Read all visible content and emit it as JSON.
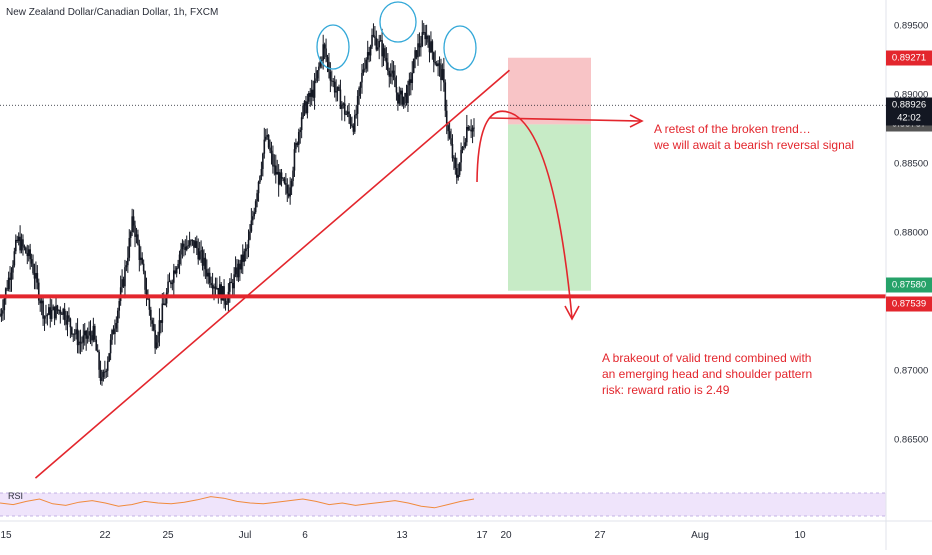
{
  "title": "New Zealand Dollar/Canadian Dollar, 1h, FXCM",
  "colors": {
    "candles": "#131722",
    "annotation": "#e3262d",
    "target_zone": "#c7ebc6",
    "stop_zone": "#f8c4c6",
    "rsi_line": "#f08a3c",
    "rsi_band": "#efe4fb",
    "head_shoulder_circles": "#33a8d8"
  },
  "annotations": {
    "retest_line1": "A retest of the broken trend…",
    "retest_line2": "we will await a bearish reversal signal",
    "breakout_line1": "A brakeout of valid trend combined with",
    "breakout_line2": "an emerging head and shoulder pattern",
    "breakout_line3": "risk: reward ratio is 2.49"
  },
  "rsi_label": "RSI",
  "time_badge": "42:02",
  "chart_data": {
    "type": "candlestick",
    "title": "New Zealand Dollar/Canadian Dollar, 1h, FXCM",
    "x_ticks": [
      "15",
      "22",
      "25",
      "Jul",
      "6",
      "13",
      "17",
      "20",
      "27",
      "Aug",
      "10"
    ],
    "y_ticks": [
      "0.89500",
      "0.89000",
      "0.88500",
      "0.88000",
      "0.87500",
      "0.87000",
      "0.86500"
    ],
    "ylim": [
      0.8617,
      0.8969
    ],
    "price_levels": [
      {
        "label": "0.89271",
        "value": 0.89271,
        "role": "stop-loss",
        "color": "#e3262d"
      },
      {
        "label": "0.88926",
        "value": 0.88926,
        "role": "current-price",
        "color": "#131722"
      },
      {
        "label": "0.88787",
        "value": 0.88787,
        "role": "entry",
        "color": "#555555"
      },
      {
        "label": "0.87580",
        "value": 0.8758,
        "role": "take-profit",
        "color": "#26a269"
      },
      {
        "label": "0.87539",
        "value": 0.87539,
        "role": "support",
        "color": "#e3262d"
      }
    ],
    "support_level": 0.87539,
    "trendline": [
      [
        0.04,
        0.8622
      ],
      [
        0.27,
        0.87539
      ],
      [
        0.575,
        0.8918
      ]
    ],
    "price_path": [
      [
        0.0,
        0.874
      ],
      [
        0.02,
        0.8795
      ],
      [
        0.035,
        0.878
      ],
      [
        0.05,
        0.874
      ],
      [
        0.07,
        0.8745
      ],
      [
        0.09,
        0.872
      ],
      [
        0.105,
        0.8728
      ],
      [
        0.115,
        0.869
      ],
      [
        0.125,
        0.872
      ],
      [
        0.14,
        0.8768
      ],
      [
        0.15,
        0.881
      ],
      [
        0.16,
        0.8775
      ],
      [
        0.175,
        0.8722
      ],
      [
        0.19,
        0.876
      ],
      [
        0.205,
        0.879
      ],
      [
        0.22,
        0.8792
      ],
      [
        0.235,
        0.877
      ],
      [
        0.255,
        0.8752
      ],
      [
        0.265,
        0.8768
      ],
      [
        0.28,
        0.879
      ],
      [
        0.29,
        0.8832
      ],
      [
        0.3,
        0.887
      ],
      [
        0.31,
        0.8845
      ],
      [
        0.325,
        0.8828
      ],
      [
        0.34,
        0.8885
      ],
      [
        0.355,
        0.8905
      ],
      [
        0.365,
        0.8935
      ],
      [
        0.375,
        0.891
      ],
      [
        0.39,
        0.8887
      ],
      [
        0.4,
        0.8878
      ],
      [
        0.41,
        0.892
      ],
      [
        0.42,
        0.8942
      ],
      [
        0.43,
        0.8935
      ],
      [
        0.44,
        0.8918
      ],
      [
        0.45,
        0.8897
      ],
      [
        0.46,
        0.89
      ],
      [
        0.47,
        0.8932
      ],
      [
        0.48,
        0.8945
      ],
      [
        0.49,
        0.8928
      ],
      [
        0.5,
        0.8912
      ],
      [
        0.505,
        0.8875
      ],
      [
        0.51,
        0.8858
      ],
      [
        0.515,
        0.884
      ],
      [
        0.52,
        0.8855
      ],
      [
        0.528,
        0.888
      ],
      [
        0.535,
        0.8875
      ]
    ],
    "rsi_values": [
      50,
      48,
      52,
      55,
      49,
      47,
      51,
      53,
      50,
      46,
      48,
      52,
      50,
      49,
      51,
      54,
      58,
      56,
      52,
      50,
      49,
      51,
      53,
      55,
      52,
      48,
      50,
      47,
      49,
      51,
      53,
      50,
      46,
      44,
      48,
      52,
      55
    ]
  }
}
